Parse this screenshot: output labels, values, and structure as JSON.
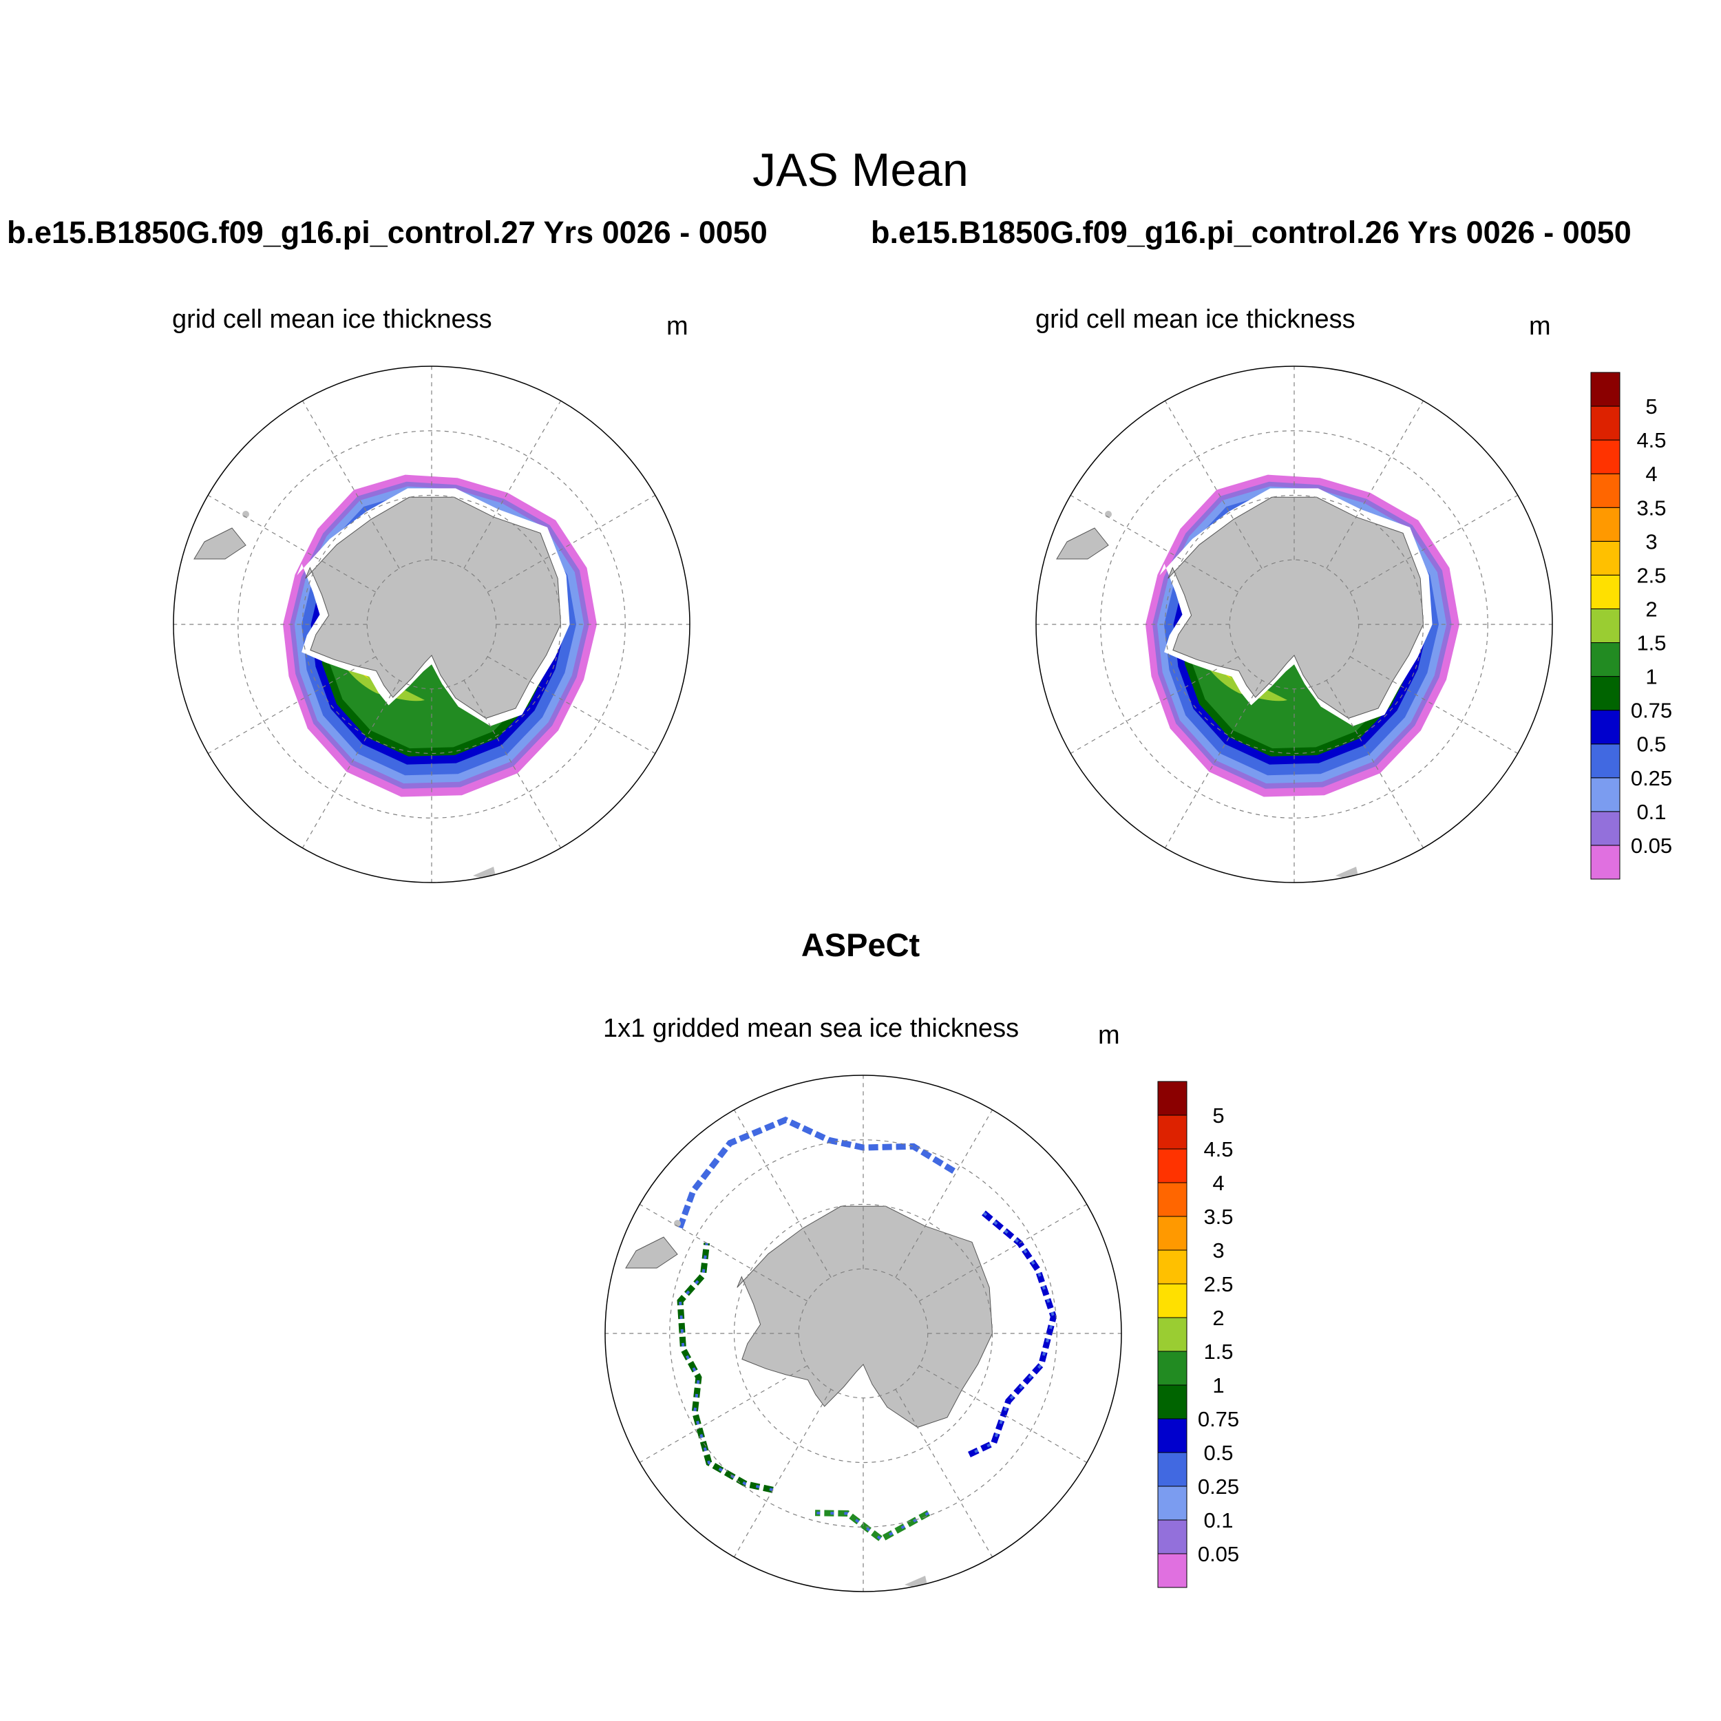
{
  "title": "JAS Mean",
  "panels": [
    {
      "case": "b.e15.B1850G.f09_g16.pi_control.27  Yrs 0026 - 0050",
      "variable": "grid cell mean ice thickness",
      "units": "m"
    },
    {
      "case": "b.e15.B1850G.f09_g16.pi_control.26  Yrs 0026 - 0050",
      "variable": "grid cell mean ice thickness",
      "units": "m"
    }
  ],
  "observation": {
    "title": "ASPeCt",
    "variable": "1x1 gridded mean sea ice thickness",
    "units": "m"
  },
  "colorbar": {
    "levels": [
      "0.05",
      "0.1",
      "0.25",
      "0.5",
      "0.75",
      "1",
      "1.5",
      "2",
      "2.5",
      "3",
      "3.5",
      "4",
      "4.5",
      "5"
    ],
    "colors": [
      "#e070e0",
      "#9370db",
      "#7b9cf0",
      "#4169e1",
      "#0000cd",
      "#006400",
      "#228b22",
      "#9acd32",
      "#ffe000",
      "#ffc000",
      "#ff9900",
      "#ff6600",
      "#ff3300",
      "#dd2200",
      "#8b0000"
    ]
  },
  "map_colors": {
    "land": "#c0c0c0",
    "grid": "#808080"
  }
}
